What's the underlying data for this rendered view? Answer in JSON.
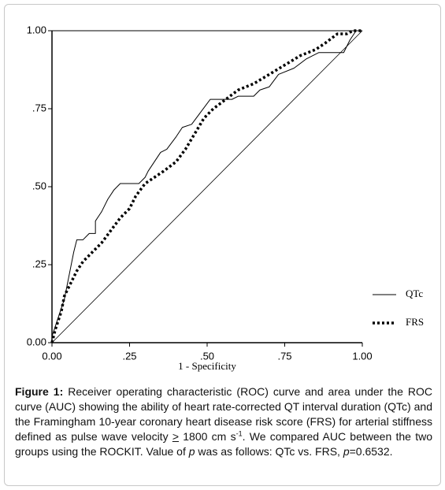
{
  "chart_data": {
    "type": "line",
    "x_label": "1 - Specificity",
    "xlim": [
      0,
      1
    ],
    "ylim": [
      0,
      1
    ],
    "xticks": [
      {
        "value": 0,
        "label": "0.00"
      },
      {
        "value": 0.25,
        "label": ".25"
      },
      {
        "value": 0.5,
        "label": ".50"
      },
      {
        "value": 0.75,
        "label": ".75"
      },
      {
        "value": 1,
        "label": "1.00"
      }
    ],
    "yticks": [
      {
        "value": 0,
        "label": "0.00"
      },
      {
        "value": 0.25,
        "label": ".25"
      },
      {
        "value": 0.5,
        "label": ".50"
      },
      {
        "value": 0.75,
        "label": ".75"
      },
      {
        "value": 1,
        "label": "1.00"
      }
    ],
    "legend": "right",
    "series": [
      {
        "name": "QTc",
        "color": "#000000",
        "style": "solid",
        "x": [
          0,
          0,
          0.01,
          0.02,
          0.03,
          0.04,
          0.05,
          0.06,
          0.07,
          0.08,
          0.1,
          0.12,
          0.14,
          0.14,
          0.16,
          0.18,
          0.2,
          0.22,
          0.28,
          0.3,
          0.31,
          0.33,
          0.35,
          0.37,
          0.4,
          0.42,
          0.45,
          0.48,
          0.51,
          0.58,
          0.6,
          0.65,
          0.67,
          0.7,
          0.73,
          0.78,
          0.82,
          0.86,
          0.94,
          0.96,
          0.98,
          1
        ],
        "values": [
          0,
          0.02,
          0.05,
          0.08,
          0.11,
          0.14,
          0.19,
          0.24,
          0.29,
          0.33,
          0.33,
          0.35,
          0.35,
          0.39,
          0.42,
          0.46,
          0.49,
          0.51,
          0.51,
          0.53,
          0.55,
          0.58,
          0.61,
          0.62,
          0.66,
          0.69,
          0.7,
          0.74,
          0.78,
          0.78,
          0.79,
          0.79,
          0.81,
          0.82,
          0.86,
          0.88,
          0.91,
          0.93,
          0.93,
          0.97,
          1,
          1
        ]
      },
      {
        "name": "FRS",
        "color": "#000000",
        "style": "dotted",
        "x": [
          0,
          0.01,
          0.03,
          0.04,
          0.06,
          0.08,
          0.1,
          0.13,
          0.16,
          0.19,
          0.22,
          0.25,
          0.27,
          0.3,
          0.33,
          0.36,
          0.4,
          0.43,
          0.46,
          0.49,
          0.52,
          0.56,
          0.6,
          0.65,
          0.7,
          0.75,
          0.8,
          0.85,
          0.88,
          0.92,
          0.95,
          0.97,
          1
        ],
        "values": [
          0,
          0.04,
          0.1,
          0.15,
          0.19,
          0.23,
          0.26,
          0.29,
          0.32,
          0.36,
          0.4,
          0.43,
          0.47,
          0.51,
          0.53,
          0.55,
          0.58,
          0.62,
          0.67,
          0.72,
          0.75,
          0.78,
          0.81,
          0.83,
          0.86,
          0.89,
          0.92,
          0.94,
          0.96,
          0.99,
          0.99,
          1,
          1
        ]
      }
    ]
  },
  "caption": {
    "parts": [
      "Figure 1:",
      " Receiver operating characteristic (ROC) curve and area under the ROC curve (AUC) showing the ability of heart rate-corrected QT interval duration (QTc) and the Framingham 10-year coronary heart disease risk score (FRS) for arterial stiffness defined as pulse wave velocity ",
      ">",
      " 1800 cm s",
      "-1",
      ". We compared AUC between the two groups using the ROCKIT. Value of ",
      "p",
      " was as follows: QTc vs. FRS, ",
      "p",
      "=0.6532."
    ]
  }
}
